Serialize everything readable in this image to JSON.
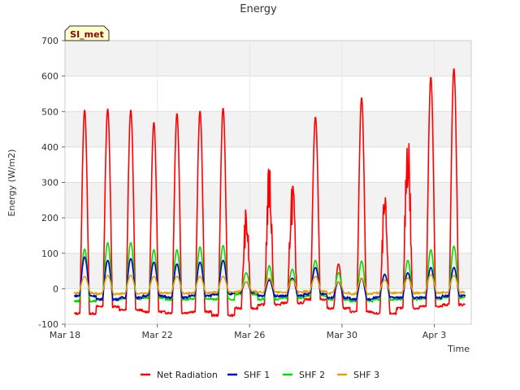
{
  "chart_data": {
    "type": "line",
    "title": "Energy",
    "xlabel": "Time",
    "ylabel": "Energy (W/m2)",
    "site_label": "SI_met",
    "xlim": [
      0,
      17.6
    ],
    "ylim": [
      -100,
      700
    ],
    "x_ticks": [
      {
        "x": 0,
        "label": "Mar 18"
      },
      {
        "x": 4,
        "label": "Mar 22"
      },
      {
        "x": 8,
        "label": "Mar 26"
      },
      {
        "x": 12,
        "label": "Mar 30"
      },
      {
        "x": 16,
        "label": "Apr 3"
      }
    ],
    "y_ticks": [
      -100,
      0,
      100,
      200,
      300,
      400,
      500,
      600,
      700
    ],
    "grid": true,
    "legend_position": "bottom",
    "daily_peaks": {
      "x_peak": [
        0.85,
        1.85,
        2.85,
        3.85,
        4.85,
        5.85,
        6.85,
        7.85,
        8.85,
        9.85,
        10.85,
        11.85,
        12.85,
        13.85,
        14.85,
        15.85,
        16.85
      ],
      "net_radiation_peak": [
        505,
        508,
        505,
        470,
        495,
        502,
        510,
        235,
        368,
        330,
        485,
        70,
        540,
        272,
        500,
        598,
        622
      ],
      "net_radiation_night": [
        -70,
        -50,
        -60,
        -65,
        -68,
        -65,
        -75,
        -55,
        -45,
        -40,
        -30,
        -55,
        -65,
        -70,
        -55,
        -50,
        -45
      ],
      "shf1_peak": [
        90,
        80,
        85,
        75,
        70,
        75,
        80,
        20,
        25,
        30,
        60,
        20,
        30,
        40,
        45,
        60,
        60
      ],
      "shf1_night": [
        -20,
        -30,
        -25,
        -20,
        -25,
        -20,
        -15,
        -10,
        -20,
        -20,
        -15,
        -25,
        -30,
        -25,
        -25,
        -25,
        -20
      ],
      "shf2_peak": [
        112,
        130,
        130,
        110,
        110,
        118,
        122,
        45,
        65,
        55,
        80,
        45,
        78,
        42,
        80,
        110,
        120
      ],
      "shf2_night": [
        -35,
        -30,
        -28,
        -25,
        -30,
        -28,
        -30,
        -15,
        -30,
        -25,
        -20,
        -30,
        -35,
        -30,
        -30,
        -28,
        -25
      ],
      "shf3_peak": [
        35,
        38,
        38,
        35,
        35,
        35,
        35,
        20,
        30,
        25,
        35,
        20,
        30,
        25,
        30,
        40,
        38
      ],
      "shf3_night": [
        -12,
        -15,
        -14,
        -12,
        -13,
        -12,
        -10,
        -8,
        -10,
        -10,
        -8,
        -12,
        -15,
        -12,
        -12,
        -12,
        -10
      ]
    },
    "series": [
      {
        "name": "Net Radiation",
        "color": "#ff0000",
        "peak_key": "net_radiation_peak",
        "night_key": "net_radiation_night",
        "width": 0.42
      },
      {
        "name": "SHF 1",
        "color": "#0000cc",
        "peak_key": "shf1_peak",
        "night_key": "shf1_night",
        "width": 0.45
      },
      {
        "name": "SHF 2",
        "color": "#00dd00",
        "peak_key": "shf2_peak",
        "night_key": "shf2_night",
        "width": 0.45
      },
      {
        "name": "SHF 3",
        "color": "#e8a000",
        "peak_key": "shf3_peak",
        "night_key": "shf3_night",
        "width": 0.5
      }
    ]
  }
}
